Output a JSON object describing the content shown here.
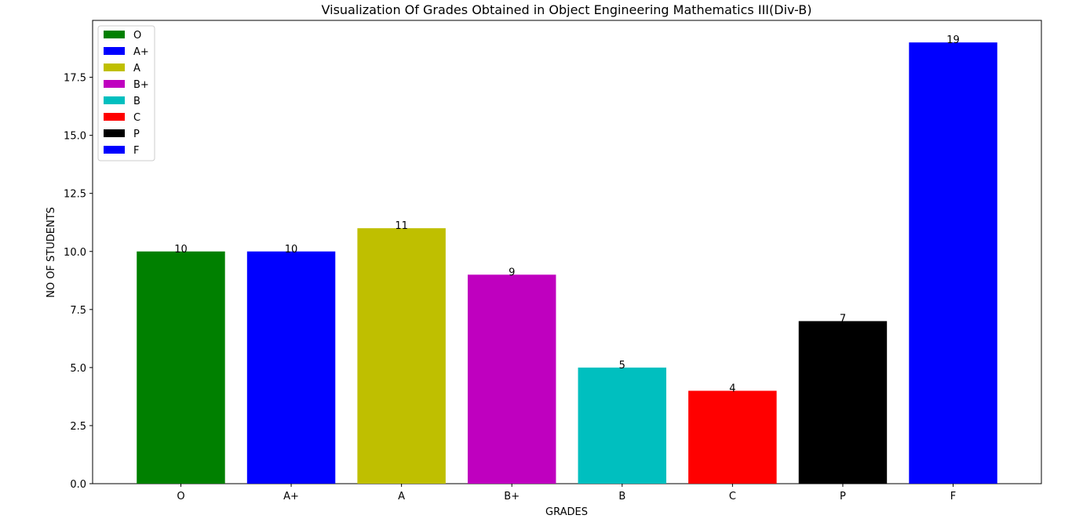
{
  "chart_data": {
    "type": "bar",
    "title": "Visualization Of Grades Obtained in Object Engineering Mathematics III(Div-B)",
    "xlabel": "GRADES",
    "ylabel": "NO OF STUDENTS",
    "categories": [
      "O",
      "A+",
      "A",
      "B+",
      "B",
      "C",
      "P",
      "F"
    ],
    "values": [
      10,
      10,
      11,
      9,
      5,
      4,
      7,
      19
    ],
    "value_labels": [
      "10",
      "10",
      "11",
      "9",
      "5",
      "4",
      "7",
      "19"
    ],
    "colors": [
      "#008000",
      "#0000ff",
      "#bfbf00",
      "#bf00bf",
      "#00bfbf",
      "#ff0000",
      "#000000",
      "#0000ff"
    ],
    "ylim": [
      0,
      19.95
    ],
    "yticks": [
      0,
      2.5,
      5,
      7.5,
      10,
      12.5,
      15,
      17.5
    ],
    "ytick_labels": [
      "0.0",
      "2.5",
      "5.0",
      "7.5",
      "10.0",
      "12.5",
      "15.0",
      "17.5"
    ],
    "grid": false,
    "legend": {
      "placement": "top-left",
      "entries": [
        "O",
        "A+",
        "A",
        "B+",
        "B",
        "C",
        "P",
        "F"
      ]
    }
  }
}
